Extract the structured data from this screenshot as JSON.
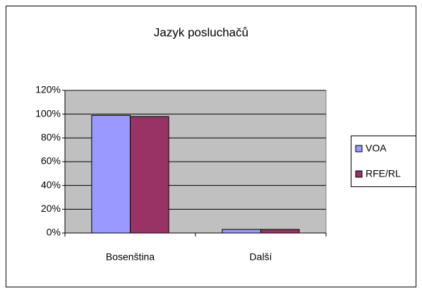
{
  "chart_data": {
    "type": "bar",
    "title": "Jazyk posluchačů",
    "categories": [
      "Bosenština",
      "Další"
    ],
    "series": [
      {
        "name": "VOA",
        "color": "#9999ff",
        "values": [
          99,
          3
        ]
      },
      {
        "name": "RFE/RL",
        "color": "#993366",
        "values": [
          98,
          3
        ]
      }
    ],
    "ylim": [
      0,
      120
    ],
    "yticks": [
      {
        "value": 0,
        "label": "0%"
      },
      {
        "value": 20,
        "label": "20%"
      },
      {
        "value": 40,
        "label": "40%"
      },
      {
        "value": 60,
        "label": "60%"
      },
      {
        "value": 80,
        "label": "80%"
      },
      {
        "value": 100,
        "label": "100%"
      },
      {
        "value": 120,
        "label": "120%"
      }
    ],
    "grid": true,
    "legend": "right",
    "plot_background": "#c0c0c0"
  }
}
